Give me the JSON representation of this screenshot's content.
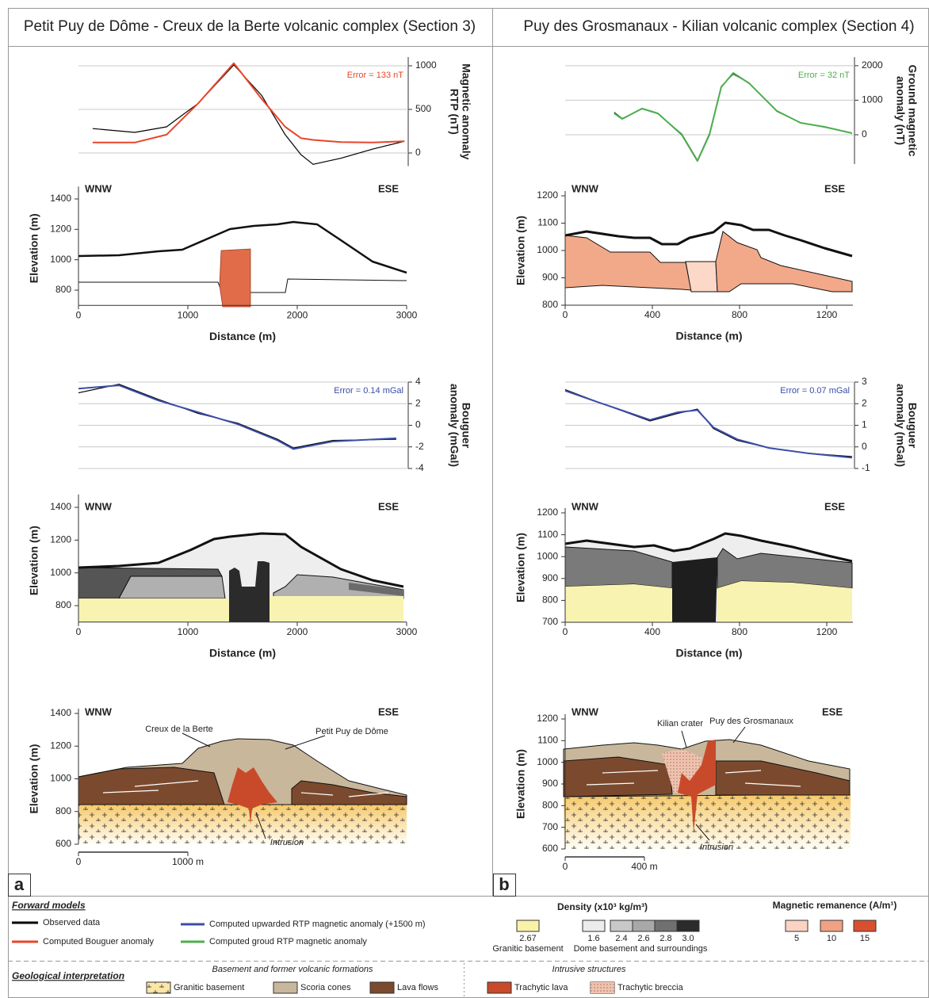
{
  "header": {
    "left_title": "Petit Puy de Dôme - Creux de la Berte volcanic complex (Section 3)",
    "right_title": "Puy des Grosmanaux - Kilian volcanic complex (Section 4)"
  },
  "panel_labels": [
    "a",
    "b"
  ],
  "chart_data": [
    {
      "type": "line",
      "ylabel": [
        "Magnetic anomaly",
        "RTP (nT)"
      ],
      "annotation": "Error = 133 nT",
      "x": [
        130,
        515,
        805,
        1095,
        1420,
        1675,
        1890,
        2035,
        2145,
        2400,
        2690,
        2980
      ],
      "xlim": [
        0,
        3000
      ],
      "ylim": [
        -150,
        1100
      ],
      "yticks": [
        0,
        500,
        1000
      ],
      "grid": true,
      "series": [
        {
          "color": "#000000",
          "values": [
            280,
            236,
            300,
            570,
            1010,
            660,
            210,
            -20,
            -130,
            -60,
            45,
            135
          ]
        },
        {
          "color": "#e8462a",
          "values": [
            120,
            120,
            210,
            570,
            1030,
            620,
            300,
            170,
            150,
            125,
            120,
            135
          ]
        }
      ]
    },
    {
      "type": "section",
      "labels": [
        "WNW",
        "ESE"
      ],
      "xlabel": "Distance (m)",
      "ylabel": "Elevation (m)",
      "xlim": [
        0,
        3000
      ],
      "ylim": [
        700,
        1450
      ],
      "xticks": [
        0,
        1000,
        2000,
        3000
      ],
      "yticks": [
        800,
        1000,
        1200,
        1400
      ]
    },
    {
      "type": "line",
      "ylabel": [
        "Bouguer",
        "anomaly (mGal)"
      ],
      "annotation": "Error = 0.14 mGal",
      "x": [
        0,
        370,
        730,
        1095,
        1455,
        1820,
        1965,
        2325,
        2905
      ],
      "xlim": [
        0,
        3000
      ],
      "ylim": [
        -4,
        4
      ],
      "yticks": [
        -4,
        -2,
        0,
        2,
        4
      ],
      "grid": true,
      "series": [
        {
          "color": "#000000",
          "values": [
            3.0,
            3.8,
            2.4,
            1.1,
            0.2,
            -1.3,
            -2.1,
            -1.4,
            -1.3
          ]
        },
        {
          "color": "#3b4ea8",
          "values": [
            3.4,
            3.7,
            2.3,
            1.2,
            0.1,
            -1.4,
            -2.2,
            -1.5,
            -1.2
          ]
        }
      ]
    },
    {
      "type": "section",
      "labels": [
        "WNW",
        "ESE"
      ],
      "xlabel": "Distance (m)",
      "ylabel": "Elevation (m)",
      "xlim": [
        0,
        3000
      ],
      "ylim": [
        700,
        1450
      ],
      "xticks": [
        0,
        1000,
        2000,
        3000
      ],
      "yticks": [
        800,
        1000,
        1200,
        1400
      ]
    },
    {
      "type": "section",
      "labels": [
        "WNW",
        "ESE"
      ],
      "ylabel": "Elevation (m)",
      "scale_bar": true,
      "annotations": [
        "Creux de la Berte",
        "Petit Puy de Dôme",
        "Intrusion"
      ],
      "xlim": [
        0,
        3000
      ],
      "ylim": [
        600,
        1400
      ],
      "xticks": [
        0,
        {
          "value": 1000,
          "label": "1000 m"
        }
      ],
      "yticks": [
        600,
        800,
        1000,
        1200,
        1400
      ]
    },
    {
      "type": "line",
      "ylabel": [
        "Ground magnetic",
        "anomaly (nT)"
      ],
      "annotation": "Error = 32 nT",
      "x": [
        225,
        262,
        353,
        425,
        535,
        607,
        662,
        716,
        771,
        844,
        971,
        1080,
        1189,
        1316
      ],
      "xlim": [
        0,
        1320
      ],
      "ylim": [
        -850,
        2250
      ],
      "yticks": [
        0,
        1000,
        2000
      ],
      "grid": true,
      "series": [
        {
          "color": "#000000",
          "values": [
            650,
            470,
            750,
            610,
            20,
            -740,
            30,
            1400,
            1760,
            1500,
            680,
            350,
            220,
            50
          ]
        },
        {
          "color": "#4caf50",
          "values": [
            620,
            460,
            760,
            620,
            0,
            -760,
            0,
            1380,
            1790,
            1490,
            690,
            345,
            230,
            46
          ]
        }
      ]
    },
    {
      "type": "section",
      "labels": [
        "WNW",
        "ESE"
      ],
      "xlabel": "Distance (m)",
      "ylabel": "Elevation (m)",
      "xlim": [
        0,
        1320
      ],
      "ylim": [
        800,
        1200
      ],
      "xticks": [
        0,
        400,
        800,
        1200
      ],
      "yticks": [
        800,
        900,
        1000,
        1100,
        1200
      ]
    },
    {
      "type": "line",
      "ylabel": [
        "Bouguer",
        "anomaly (mGal)"
      ],
      "annotation": "Error = 0.07 mGal",
      "x": [
        0,
        171,
        389,
        516,
        607,
        680,
        789,
        935,
        1116,
        1316
      ],
      "xlim": [
        0,
        1320
      ],
      "ylim": [
        -1,
        3
      ],
      "yticks": [
        -1,
        0,
        1,
        2,
        3
      ],
      "grid": true,
      "series": [
        {
          "color": "#000000",
          "values": [
            2.65,
            2.0,
            1.2,
            1.55,
            1.75,
            0.85,
            0.3,
            -0.05,
            -0.3,
            -0.45
          ]
        },
        {
          "color": "#3b4ea8",
          "values": [
            2.6,
            2.0,
            1.25,
            1.6,
            1.7,
            0.9,
            0.35,
            -0.05,
            -0.3,
            -0.5
          ]
        }
      ]
    },
    {
      "type": "section",
      "labels": [
        "WNW",
        "ESE"
      ],
      "xlabel": "Distance (m)",
      "ylabel": "Elevation (m)",
      "xlim": [
        0,
        1320
      ],
      "ylim": [
        700,
        1200
      ],
      "xticks": [
        0,
        400,
        800,
        1200
      ],
      "yticks": [
        700,
        800,
        900,
        1000,
        1100,
        1200
      ]
    },
    {
      "type": "section",
      "labels": [
        "WNW",
        "ESE"
      ],
      "ylabel": "Elevation (m)",
      "scale_bar": true,
      "annotations": [
        "Kilian crater",
        "Puy des Grosmanaux",
        "Intrusion"
      ],
      "xlim": [
        0,
        1440
      ],
      "ylim": [
        600,
        1200
      ],
      "xticks": [
        0,
        {
          "value": 400,
          "label": "400 m"
        }
      ],
      "yticks": [
        600,
        700,
        800,
        900,
        1000,
        1100,
        1200
      ]
    }
  ],
  "legend": {
    "forward_models": {
      "title": "Forward models",
      "items": [
        {
          "label": "Observed data",
          "color": "#000000"
        },
        {
          "label": "Computed Bouguer anomaly",
          "color": "#e8462a"
        },
        {
          "label": "Computed upwarded RTP magnetic anomaly (+1500 m)",
          "color": "#3b4ea8"
        },
        {
          "label": "Computed groud RTP magnetic anomaly",
          "color": "#4caf50"
        }
      ]
    },
    "density": {
      "title": "Density (x10³ kg/m³)",
      "granitic": {
        "value": "2.67",
        "color": "#f8f3a8",
        "label": "Granitic basement"
      },
      "dome": {
        "values": [
          "1.6",
          "2.4",
          "2.6",
          "2.8",
          "3.0"
        ],
        "colors": [
          "#ececec",
          "#c8c8c8",
          "#a8a8a8",
          "#707070",
          "#2b2b2b"
        ],
        "label": "Dome basement and surroundings"
      }
    },
    "remanence": {
      "title": "Magnetic remanence (A/m¹)",
      "values": [
        "5",
        "10",
        "15"
      ],
      "colors": [
        "#fbd3c2",
        "#f0a282",
        "#d9502e"
      ]
    },
    "geology": {
      "title": "Geological interpretation",
      "groups": [
        "Basement and former volcanic formations",
        "Intrusive structures"
      ],
      "items": [
        {
          "label": "Granitic basement",
          "color": "#fbe6a6"
        },
        {
          "label": "Scoria cones",
          "color": "#c9b79c"
        },
        {
          "label": "Lava flows",
          "color": "#7b4a2e"
        },
        {
          "label": "Trachytic lava",
          "color": "#c94a2a"
        },
        {
          "label": "Trachytic breccia",
          "color": "#e9b9a0"
        }
      ]
    }
  }
}
